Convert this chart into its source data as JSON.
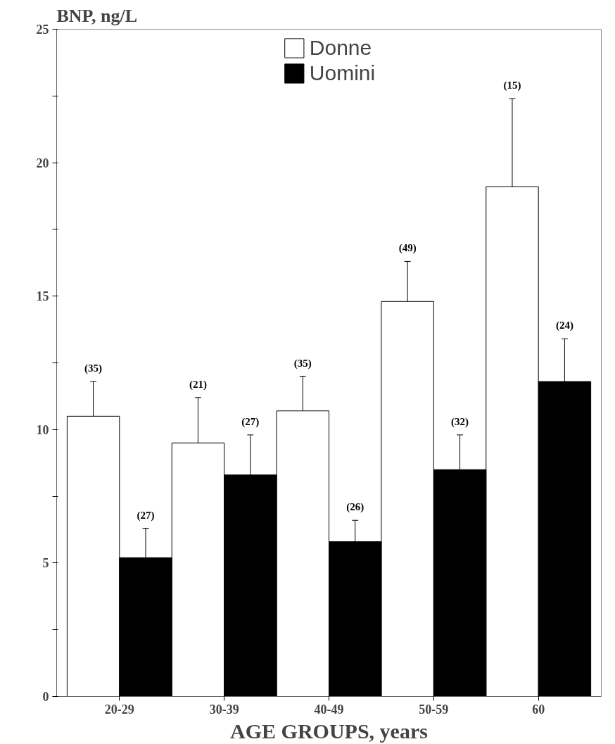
{
  "chart_data": {
    "type": "bar",
    "ylabel": "BNP, ng/L",
    "xlabel": "AGE GROUPS, years",
    "categories": [
      "20-29",
      "30-39",
      "40-49",
      "50-59",
      "60"
    ],
    "series": [
      {
        "name": "Donne",
        "color": "#ffffff",
        "values": [
          10.5,
          9.5,
          10.7,
          14.8,
          19.1
        ],
        "errors": [
          [
            10.5,
            11.8
          ],
          [
            9.5,
            11.2
          ],
          [
            10.7,
            12.0
          ],
          [
            14.8,
            16.3
          ],
          [
            19.1,
            22.4
          ]
        ]
      },
      {
        "name": "Uomini",
        "color": "#000000",
        "values": [
          5.2,
          8.3,
          5.8,
          8.5,
          11.8
        ],
        "errors": [
          [
            5.2,
            6.3
          ],
          [
            8.3,
            9.8
          ],
          [
            5.8,
            6.6
          ],
          [
            8.5,
            9.8
          ],
          [
            11.8,
            13.4
          ]
        ]
      }
    ],
    "annotations": [
      "(35)",
      "(27)",
      "(21)",
      "(27)",
      "(35)",
      "(26)",
      "(49)",
      "(32)",
      "(15)",
      "(24)"
    ],
    "ylim": [
      0,
      25
    ],
    "yticks": [
      0,
      {
        "value": 2.5,
        "label": null
      },
      5,
      {
        "value": 7.5,
        "label": null
      },
      10,
      {
        "value": 12.5,
        "label": null
      },
      15,
      {
        "value": 17.5,
        "label": null
      },
      20,
      {
        "value": 22.5,
        "label": null
      },
      25
    ],
    "grid": false,
    "legend": "top"
  }
}
